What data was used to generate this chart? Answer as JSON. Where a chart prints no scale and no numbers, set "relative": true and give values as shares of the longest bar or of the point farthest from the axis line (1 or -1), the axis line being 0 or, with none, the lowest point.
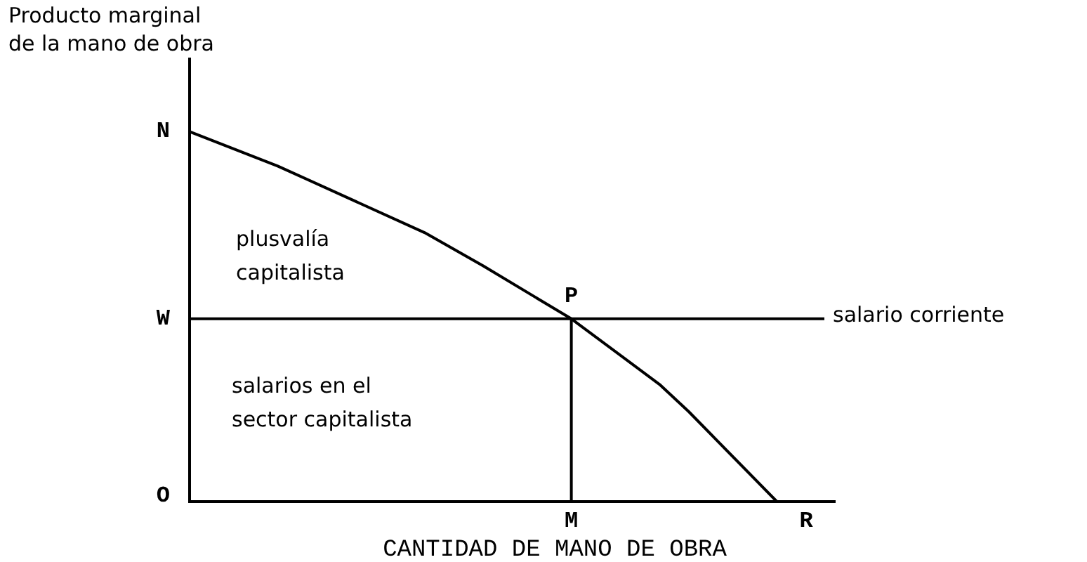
{
  "chart_data": {
    "type": "line",
    "relative": true,
    "xlabel": "CANTIDAD DE MANO DE OBRA",
    "ylabel": "Producto marginal\nde la mano de obra",
    "marker": "none",
    "categories": [
      null,
      null,
      null,
      null,
      null,
      null,
      null,
      null,
      null,
      null,
      null,
      null,
      null,
      "M",
      null,
      null,
      null,
      null,
      null,
      null,
      null,
      "R",
      null
    ],
    "series": [
      {
        "color": "#000000",
        "values": [
          1,
          null,
          null,
          0.907,
          null,
          null,
          null,
          null,
          0.727,
          null,
          0.637,
          null,
          null,
          0.494,
          null,
          null,
          0.317,
          0.243,
          null,
          null,
          0,
          null,
          null
        ]
      }
    ],
    "ref_lines": [
      {
        "axis": "y",
        "value": 0.494,
        "label": "salario corriente"
      },
      {
        "axis": "x",
        "value": "M"
      }
    ],
    "annotations": [
      "N",
      "W",
      "O",
      {
        "text": "P",
        "x": "M",
        "y": 0.494
      },
      "plusvalía\ncapitalista",
      "salarios en el\nsector capitalista"
    ]
  }
}
